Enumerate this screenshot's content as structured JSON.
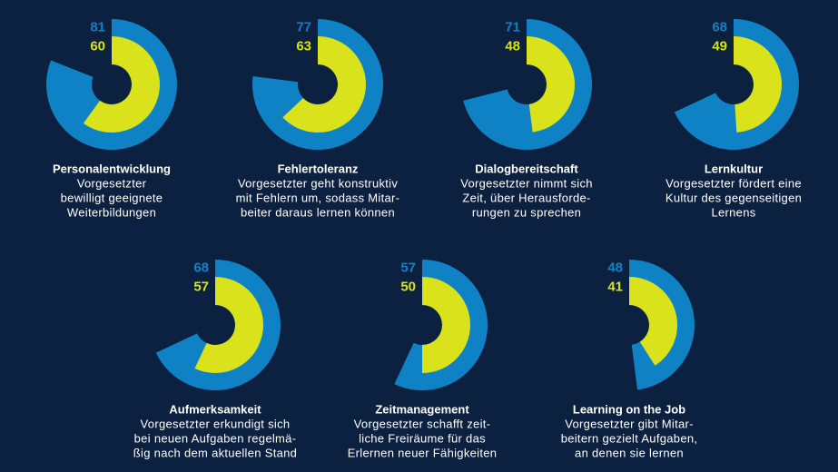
{
  "chart_data": [
    {
      "type": "radial",
      "title": "Personalentwicklung",
      "description": [
        "Vorgesetzter",
        "bewilligt geeignete",
        "Weiterbildungen"
      ],
      "values": [
        81,
        60
      ],
      "colors": [
        "#0f82c6",
        "#d9e21a"
      ],
      "ylim": [
        0,
        100
      ]
    },
    {
      "type": "radial",
      "title": "Fehlertoleranz",
      "description": [
        "Vorgesetzter geht konstruktiv",
        "mit Fehlern um, sodass Mitar-",
        "beiter daraus lernen können"
      ],
      "values": [
        77,
        63
      ],
      "colors": [
        "#0f82c6",
        "#d9e21a"
      ],
      "ylim": [
        0,
        100
      ]
    },
    {
      "type": "radial",
      "title": "Dialogbereitschaft",
      "description": [
        "Vorgesetzter nimmt sich",
        "Zeit, über Herausforde-",
        "rungen zu sprechen"
      ],
      "values": [
        71,
        48
      ],
      "colors": [
        "#0f82c6",
        "#d9e21a"
      ],
      "ylim": [
        0,
        100
      ]
    },
    {
      "type": "radial",
      "title": "Lernkultur",
      "description": [
        "Vorgesetzter fördert eine",
        "Kultur des gegenseitigen",
        "Lernens"
      ],
      "values": [
        68,
        49
      ],
      "colors": [
        "#0f82c6",
        "#d9e21a"
      ],
      "ylim": [
        0,
        100
      ]
    },
    {
      "type": "radial",
      "title": "Aufmerksamkeit",
      "description": [
        "Vorgesetzter erkundigt sich",
        "bei neuen Aufgaben regelmä-",
        "ßig nach dem aktuellen Stand"
      ],
      "values": [
        68,
        57
      ],
      "colors": [
        "#0f82c6",
        "#d9e21a"
      ],
      "ylim": [
        0,
        100
      ]
    },
    {
      "type": "radial",
      "title": "Zeitmanagement",
      "description": [
        "Vorgesetzter schafft zeit-",
        "liche Freiräume für das",
        "Erlernen neuer Fähigkeiten"
      ],
      "values": [
        57,
        50
      ],
      "colors": [
        "#0f82c6",
        "#d9e21a"
      ],
      "ylim": [
        0,
        100
      ]
    },
    {
      "type": "radial",
      "title": "Learning on the Job",
      "description": [
        "Vorgesetzter gibt Mitar-",
        "beitern gezielt Aufgaben,",
        "an denen sie lernen"
      ],
      "values": [
        48,
        41
      ],
      "colors": [
        "#0f82c6",
        "#d9e21a"
      ],
      "ylim": [
        0,
        100
      ]
    }
  ]
}
